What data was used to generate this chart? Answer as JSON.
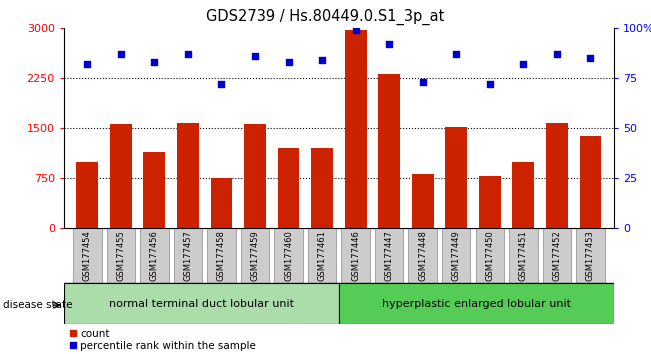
{
  "title": "GDS2739 / Hs.80449.0.S1_3p_at",
  "categories": [
    "GSM177454",
    "GSM177455",
    "GSM177456",
    "GSM177457",
    "GSM177458",
    "GSM177459",
    "GSM177460",
    "GSM177461",
    "GSM177446",
    "GSM177447",
    "GSM177448",
    "GSM177449",
    "GSM177450",
    "GSM177451",
    "GSM177452",
    "GSM177453"
  ],
  "counts": [
    1000,
    1560,
    1150,
    1580,
    760,
    1560,
    1200,
    1200,
    2980,
    2310,
    820,
    1520,
    790,
    1000,
    1580,
    1390
  ],
  "percentiles": [
    82,
    87,
    83,
    87,
    72,
    86,
    83,
    84,
    99,
    92,
    73,
    87,
    72,
    82,
    87,
    85
  ],
  "group1_label": "normal terminal duct lobular unit",
  "group2_label": "hyperplastic enlarged lobular unit",
  "group1_count": 8,
  "group2_count": 8,
  "ylim_left": [
    0,
    3000
  ],
  "ylim_right": [
    0,
    100
  ],
  "yticks_left": [
    0,
    750,
    1500,
    2250,
    3000
  ],
  "yticks_right": [
    0,
    25,
    50,
    75,
    100
  ],
  "bar_color": "#cc2200",
  "dot_color": "#0000cc",
  "group1_bg": "#aaddaa",
  "group2_bg": "#55cc55",
  "tick_bg": "#cccccc",
  "legend_count_label": "count",
  "legend_pct_label": "percentile rank within the sample",
  "disease_state_label": "disease state"
}
